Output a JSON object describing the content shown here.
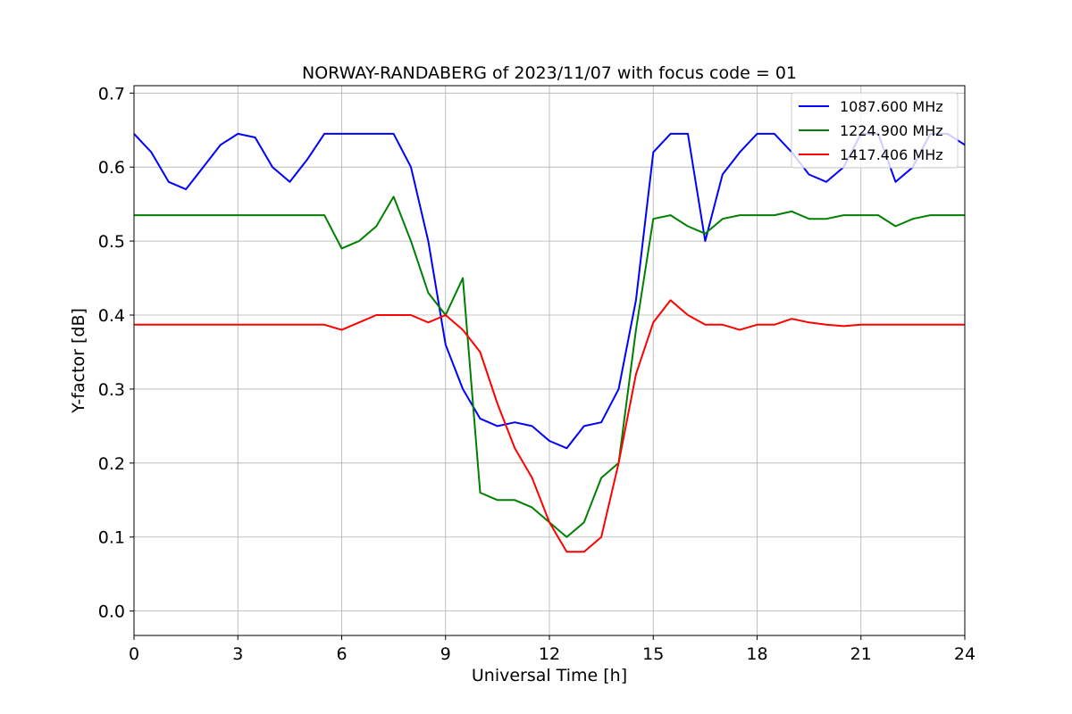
{
  "chart_data": {
    "type": "line",
    "title": "NORWAY-RANDABERG of 2023/11/07 with focus code = 01",
    "xlabel": "Universal Time [h]",
    "ylabel": "Y-factor [dB]",
    "xlim": [
      0,
      24
    ],
    "ylim": [
      -0.033,
      0.71
    ],
    "xticks": [
      0,
      3,
      6,
      9,
      12,
      15,
      18,
      21,
      24
    ],
    "xtick_labels": [
      "0",
      "3",
      "6",
      "9",
      "12",
      "15",
      "18",
      "21",
      "24"
    ],
    "yticks": [
      0.0,
      0.1,
      0.2,
      0.3,
      0.4,
      0.5,
      0.6,
      0.7
    ],
    "ytick_labels": [
      "0.0",
      "0.1",
      "0.2",
      "0.3",
      "0.4",
      "0.5",
      "0.6",
      "0.7"
    ],
    "grid": true,
    "legend_position": "top-right",
    "series": [
      {
        "name": "1087.600 MHz",
        "color": "#0000ff",
        "x": [
          0,
          0.5,
          1.0,
          1.5,
          2.0,
          2.5,
          3.0,
          3.5,
          4.0,
          4.5,
          5.0,
          5.5,
          6.0,
          6.5,
          7.0,
          7.5,
          8.0,
          8.5,
          9.0,
          9.5,
          10.0,
          10.5,
          11.0,
          11.5,
          12.0,
          12.5,
          13.0,
          13.5,
          14.0,
          14.5,
          15.0,
          15.5,
          16.0,
          16.5,
          17.0,
          17.5,
          18.0,
          18.5,
          19.0,
          19.5,
          20.0,
          20.5,
          21.0,
          21.5,
          22.0,
          22.5,
          23.0,
          23.5,
          24.0
        ],
        "y": [
          0.645,
          0.62,
          0.58,
          0.57,
          0.6,
          0.63,
          0.645,
          0.64,
          0.6,
          0.58,
          0.61,
          0.645,
          0.645,
          0.645,
          0.645,
          0.645,
          0.6,
          0.5,
          0.36,
          0.3,
          0.26,
          0.25,
          0.255,
          0.25,
          0.23,
          0.22,
          0.25,
          0.255,
          0.3,
          0.42,
          0.62,
          0.645,
          0.645,
          0.5,
          0.59,
          0.62,
          0.645,
          0.645,
          0.62,
          0.59,
          0.58,
          0.6,
          0.645,
          0.645,
          0.58,
          0.6,
          0.645,
          0.645,
          0.63
        ]
      },
      {
        "name": "1224.900 MHz",
        "color": "#008000",
        "x": [
          0,
          0.5,
          1.0,
          1.5,
          2.0,
          2.5,
          3.0,
          3.5,
          4.0,
          4.5,
          5.0,
          5.5,
          6.0,
          6.5,
          7.0,
          7.5,
          8.0,
          8.5,
          9.0,
          9.5,
          10.0,
          10.5,
          11.0,
          11.5,
          12.0,
          12.5,
          13.0,
          13.5,
          14.0,
          14.5,
          15.0,
          15.5,
          16.0,
          16.5,
          17.0,
          17.5,
          18.0,
          18.5,
          19.0,
          19.5,
          20.0,
          20.5,
          21.0,
          21.5,
          22.0,
          22.5,
          23.0,
          23.5,
          24.0
        ],
        "y": [
          0.535,
          0.535,
          0.535,
          0.535,
          0.535,
          0.535,
          0.535,
          0.535,
          0.535,
          0.535,
          0.535,
          0.535,
          0.49,
          0.5,
          0.52,
          0.56,
          0.5,
          0.43,
          0.4,
          0.45,
          0.16,
          0.15,
          0.15,
          0.14,
          0.12,
          0.1,
          0.12,
          0.18,
          0.2,
          0.38,
          0.53,
          0.535,
          0.52,
          0.51,
          0.53,
          0.535,
          0.535,
          0.535,
          0.54,
          0.53,
          0.53,
          0.535,
          0.535,
          0.535,
          0.52,
          0.53,
          0.535,
          0.535,
          0.535
        ]
      },
      {
        "name": "1417.406 MHz",
        "color": "#ff0000",
        "x": [
          0,
          0.5,
          1.0,
          1.5,
          2.0,
          2.5,
          3.0,
          3.5,
          4.0,
          4.5,
          5.0,
          5.5,
          6.0,
          6.5,
          7.0,
          7.5,
          8.0,
          8.5,
          9.0,
          9.5,
          10.0,
          10.5,
          11.0,
          11.5,
          12.0,
          12.5,
          13.0,
          13.5,
          14.0,
          14.5,
          15.0,
          15.5,
          16.0,
          16.5,
          17.0,
          17.5,
          18.0,
          18.5,
          19.0,
          19.5,
          20.0,
          20.5,
          21.0,
          21.5,
          22.0,
          22.5,
          23.0,
          23.5,
          24.0
        ],
        "y": [
          0.387,
          0.387,
          0.387,
          0.387,
          0.387,
          0.387,
          0.387,
          0.387,
          0.387,
          0.387,
          0.387,
          0.387,
          0.38,
          0.39,
          0.4,
          0.4,
          0.4,
          0.39,
          0.4,
          0.38,
          0.35,
          0.28,
          0.22,
          0.18,
          0.12,
          0.08,
          0.08,
          0.1,
          0.2,
          0.32,
          0.39,
          0.42,
          0.4,
          0.387,
          0.387,
          0.38,
          0.387,
          0.387,
          0.395,
          0.39,
          0.387,
          0.385,
          0.387,
          0.387,
          0.387,
          0.387,
          0.387,
          0.387,
          0.387
        ]
      }
    ]
  }
}
